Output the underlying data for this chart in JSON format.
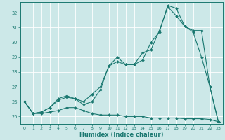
{
  "title": "",
  "xlabel": "Humidex (Indice chaleur)",
  "ylabel": "",
  "background_color": "#cce8e8",
  "line_color": "#1a7870",
  "grid_color": "#ffffff",
  "xlim": [
    -0.5,
    23.5
  ],
  "ylim": [
    24.5,
    32.7
  ],
  "yticks": [
    25,
    26,
    27,
    28,
    29,
    30,
    31,
    32
  ],
  "xticks": [
    0,
    1,
    2,
    3,
    4,
    5,
    6,
    7,
    8,
    9,
    10,
    11,
    12,
    13,
    14,
    15,
    16,
    17,
    18,
    19,
    20,
    21,
    22,
    23
  ],
  "series": [
    {
      "x": [
        0,
        1,
        2,
        3,
        4,
        5,
        6,
        7,
        8,
        9,
        10,
        11,
        12,
        13,
        14,
        15,
        16,
        17,
        18,
        19,
        20,
        21,
        22,
        23
      ],
      "y": [
        26.0,
        25.2,
        25.2,
        25.3,
        25.4,
        25.6,
        25.6,
        25.4,
        25.2,
        25.1,
        25.1,
        25.1,
        25.0,
        25.0,
        25.0,
        24.9,
        24.9,
        24.9,
        24.9,
        24.85,
        24.85,
        24.85,
        24.8,
        24.65
      ]
    },
    {
      "x": [
        0,
        1,
        2,
        3,
        4,
        5,
        6,
        7,
        8,
        9,
        10,
        11,
        12,
        13,
        14,
        15,
        16,
        17,
        18,
        19,
        20,
        21,
        22,
        23
      ],
      "y": [
        26.0,
        25.2,
        25.3,
        25.6,
        26.1,
        26.3,
        26.2,
        25.8,
        26.0,
        26.8,
        28.4,
        28.7,
        28.5,
        28.5,
        28.8,
        30.0,
        30.7,
        32.5,
        32.3,
        31.1,
        30.8,
        30.8,
        27.0,
        24.65
      ]
    },
    {
      "x": [
        0,
        1,
        2,
        3,
        4,
        5,
        6,
        7,
        8,
        9,
        10,
        11,
        12,
        13,
        14,
        15,
        16,
        17,
        18,
        19,
        20,
        21,
        22,
        23
      ],
      "y": [
        26.0,
        25.2,
        25.3,
        25.6,
        26.2,
        26.4,
        26.2,
        26.0,
        26.5,
        27.0,
        28.4,
        29.0,
        28.5,
        28.5,
        29.3,
        29.5,
        30.8,
        32.4,
        31.8,
        31.1,
        30.7,
        29.0,
        27.0,
        24.65
      ]
    }
  ]
}
